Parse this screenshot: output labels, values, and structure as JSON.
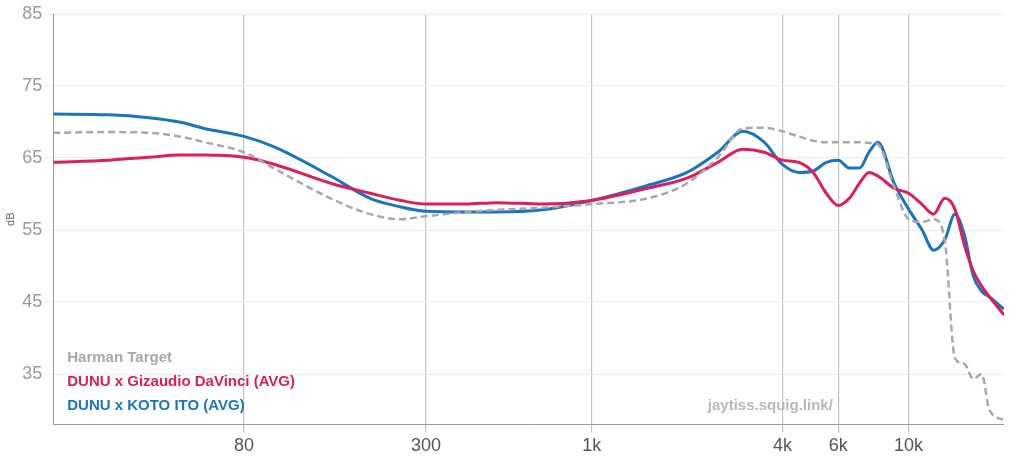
{
  "chart_data": {
    "type": "line",
    "y_label": "dB",
    "annotations": [
      "jaytiss.squig.link/"
    ],
    "x": [
      20,
      30,
      40,
      50,
      60,
      80,
      100,
      150,
      200,
      250,
      300,
      400,
      500,
      700,
      1000,
      1500,
      2000,
      2500,
      3000,
      3500,
      4000,
      4500,
      5000,
      5500,
      6000,
      6500,
      7000,
      7500,
      8000,
      9000,
      10000,
      11000,
      12000,
      13000,
      14000,
      15000,
      16000,
      17000,
      18000,
      20000
    ],
    "series": [
      {
        "name": "Harman Target",
        "color": "#aaa6ad",
        "line_style": "dashed",
        "values": [
          68.5,
          68.6,
          68.5,
          68,
          67.2,
          65.8,
          63.5,
          59.4,
          57.2,
          56.5,
          56.9,
          57.5,
          57.8,
          58.1,
          58.6,
          59.4,
          61.5,
          65.1,
          69.1,
          69.2,
          68.7,
          68,
          67.4,
          67.2,
          67.2,
          67.2,
          67.2,
          67.1,
          66.9,
          61,
          56.5,
          56.1,
          56.5,
          53.6,
          37.2,
          36.4,
          34.3,
          35,
          30,
          28.6
        ]
      },
      {
        "name": "DUNU x Gizaudio DaVinci (AVG)",
        "color": "#dc1f5b",
        "line_style": "solid",
        "values": [
          64.4,
          64.7,
          65.1,
          65.4,
          65.4,
          65.1,
          64.1,
          61.5,
          60.1,
          59.1,
          58.6,
          58.6,
          58.8,
          58.6,
          59.1,
          60.8,
          62.2,
          64.4,
          66.2,
          65.8,
          64.7,
          64.4,
          63,
          60.1,
          58.4,
          59.4,
          61.5,
          63,
          62.5,
          60.8,
          60.1,
          58.6,
          57.2,
          59.4,
          57.9,
          52.9,
          49.3,
          47.2,
          45.7,
          43.2
        ]
      },
      {
        "name": "DUNU x KOTO ITO (AVG)",
        "color": "#1b75bc",
        "line_style": "solid",
        "values": [
          71.1,
          71,
          70.6,
          70,
          69.1,
          68,
          66.5,
          62.5,
          59.4,
          58.2,
          57.6,
          57.5,
          57.5,
          57.8,
          59.1,
          61.2,
          63,
          65.8,
          68.7,
          67.2,
          64.1,
          63,
          63.2,
          64.4,
          64.7,
          63.6,
          63.6,
          65.8,
          67.2,
          61.5,
          57.9,
          55.1,
          52.2,
          53.6,
          57.2,
          54.3,
          48.6,
          46.5,
          45.7,
          44
        ]
      }
    ],
    "xlim": [
      20,
      20000
    ],
    "xticks": [
      80,
      300,
      {
        "value": 1000,
        "label": "1k"
      },
      {
        "value": 4000,
        "label": "4k"
      },
      {
        "value": 6000,
        "label": "6k"
      },
      {
        "value": 10000,
        "label": "10k"
      }
    ],
    "ylim": [
      28,
      85
    ],
    "yticks": [
      35,
      45,
      55,
      65,
      75,
      85
    ],
    "log": "x",
    "grid": true,
    "legend": "lower left"
  }
}
